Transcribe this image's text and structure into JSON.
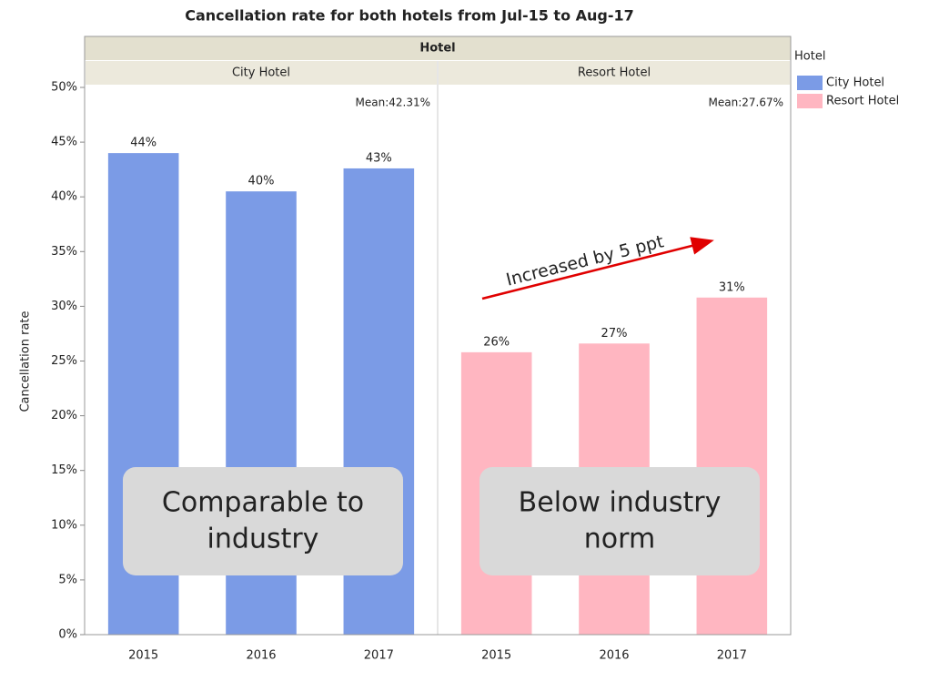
{
  "chart_data": {
    "type": "bar",
    "title": "Cancellation rate for both hotels from Jul-15 to Aug-17",
    "facet_header": "Hotel",
    "ylabel": "Cancellation rate",
    "legend_title": "Hotel",
    "ylim": [
      0,
      50
    ],
    "yticks": [
      {
        "value": 0,
        "label": "0%"
      },
      {
        "value": 5,
        "label": "5%"
      },
      {
        "value": 10,
        "label": "10%"
      },
      {
        "value": 15,
        "label": "15%"
      },
      {
        "value": 20,
        "label": "20%"
      },
      {
        "value": 25,
        "label": "25%"
      },
      {
        "value": 30,
        "label": "30%"
      },
      {
        "value": 35,
        "label": "35%"
      },
      {
        "value": 40,
        "label": "40%"
      },
      {
        "value": 45,
        "label": "45%"
      },
      {
        "value": 50,
        "label": "50%"
      }
    ],
    "series": [
      {
        "name": "City Hotel",
        "color": "#7b9be6",
        "categories": [
          "2015",
          "2016",
          "2017"
        ],
        "values": [
          44.0,
          40.5,
          42.6
        ],
        "value_labels": [
          "44%",
          "40%",
          "43%"
        ],
        "mean_label": "Mean:42.31%"
      },
      {
        "name": "Resort Hotel",
        "color": "#ffb6c1",
        "categories": [
          "2015",
          "2016",
          "2017"
        ],
        "values": [
          25.8,
          26.6,
          30.8
        ],
        "value_labels": [
          "26%",
          "27%",
          "31%"
        ],
        "mean_label": "Mean:27.67%"
      }
    ],
    "annotations": [
      {
        "text": "Increased by 5 ppt",
        "color": "#e00000"
      },
      {
        "lines": [
          "Comparable to",
          "industry"
        ]
      },
      {
        "lines": [
          "Below industry",
          "norm"
        ]
      }
    ]
  }
}
